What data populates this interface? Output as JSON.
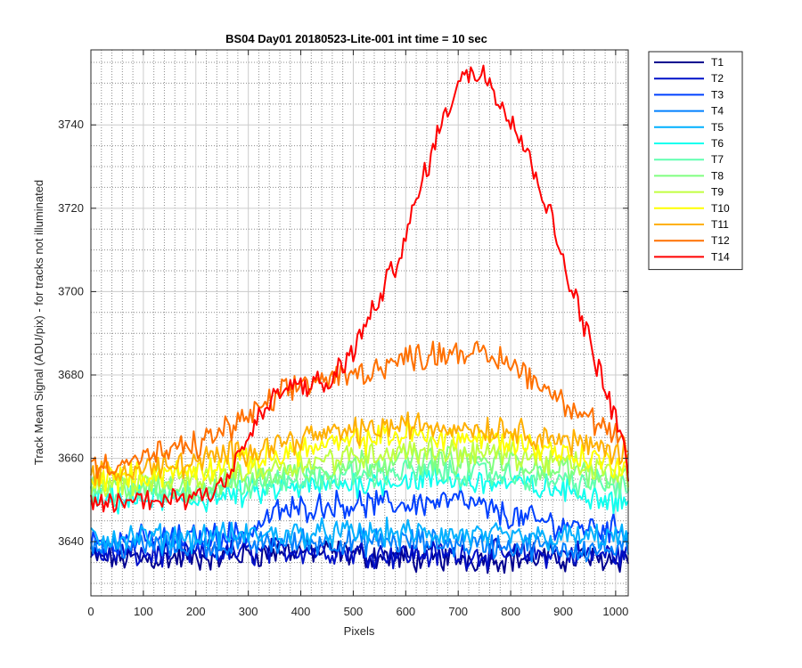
{
  "chart_data": {
    "type": "line",
    "title": "BS04 Day01 20180523-Lite-001 int time = 10 sec",
    "xlabel": "Pixels",
    "ylabel": "Track Mean Signal (ADU/pix) - for tracks not illuminated",
    "xlim": [
      0,
      1024
    ],
    "ylim": [
      3627,
      3758
    ],
    "xticks": [
      0,
      100,
      200,
      300,
      400,
      500,
      600,
      700,
      800,
      900,
      1000
    ],
    "yticks": [
      3640,
      3660,
      3680,
      3700,
      3720,
      3740
    ],
    "grid": "major-solid-minor-dotted",
    "legend_position": "outside-right",
    "noise_amplitude": 2.5,
    "x_step": 4,
    "series": [
      {
        "name": "T1",
        "color": "#00008f",
        "profile": [
          [
            0,
            3636
          ],
          [
            200,
            3636
          ],
          [
            400,
            3638
          ],
          [
            600,
            3636
          ],
          [
            800,
            3636
          ],
          [
            1024,
            3636
          ]
        ]
      },
      {
        "name": "T2",
        "color": "#0010c8",
        "profile": [
          [
            0,
            3637
          ],
          [
            200,
            3637
          ],
          [
            400,
            3638
          ],
          [
            600,
            3637
          ],
          [
            800,
            3637
          ],
          [
            1024,
            3637
          ]
        ]
      },
      {
        "name": "T3",
        "color": "#0040ff",
        "profile": [
          [
            0,
            3640
          ],
          [
            200,
            3641
          ],
          [
            300,
            3642
          ],
          [
            350,
            3647
          ],
          [
            450,
            3649
          ],
          [
            600,
            3649
          ],
          [
            700,
            3650
          ],
          [
            800,
            3646
          ],
          [
            900,
            3644
          ],
          [
            1024,
            3643
          ]
        ]
      },
      {
        "name": "T4",
        "color": "#0080ff",
        "profile": [
          [
            0,
            3639
          ],
          [
            200,
            3639
          ],
          [
            400,
            3640
          ],
          [
            600,
            3640
          ],
          [
            800,
            3639
          ],
          [
            1024,
            3638
          ]
        ]
      },
      {
        "name": "T5",
        "color": "#00b0ff",
        "profile": [
          [
            0,
            3641
          ],
          [
            200,
            3641
          ],
          [
            400,
            3642
          ],
          [
            600,
            3642
          ],
          [
            800,
            3641
          ],
          [
            1024,
            3641
          ]
        ]
      },
      {
        "name": "T6",
        "color": "#10ffef",
        "profile": [
          [
            0,
            3650
          ],
          [
            200,
            3650
          ],
          [
            400,
            3653
          ],
          [
            600,
            3655
          ],
          [
            800,
            3654
          ],
          [
            1024,
            3650
          ]
        ]
      },
      {
        "name": "T7",
        "color": "#60ffb0",
        "profile": [
          [
            0,
            3652
          ],
          [
            200,
            3652
          ],
          [
            400,
            3655
          ],
          [
            600,
            3657
          ],
          [
            800,
            3656
          ],
          [
            1024,
            3653
          ]
        ]
      },
      {
        "name": "T8",
        "color": "#80ff80",
        "profile": [
          [
            0,
            3653
          ],
          [
            200,
            3653
          ],
          [
            400,
            3657
          ],
          [
            600,
            3660
          ],
          [
            800,
            3659
          ],
          [
            1024,
            3655
          ]
        ]
      },
      {
        "name": "T9",
        "color": "#c0ff40",
        "profile": [
          [
            0,
            3654
          ],
          [
            200,
            3655
          ],
          [
            400,
            3659
          ],
          [
            600,
            3662
          ],
          [
            800,
            3661
          ],
          [
            1024,
            3656
          ]
        ]
      },
      {
        "name": "T10",
        "color": "#ffff00",
        "profile": [
          [
            0,
            3655
          ],
          [
            200,
            3657
          ],
          [
            400,
            3662
          ],
          [
            600,
            3666
          ],
          [
            800,
            3664
          ],
          [
            1024,
            3658
          ]
        ]
      },
      {
        "name": "T11",
        "color": "#ffb000",
        "profile": [
          [
            0,
            3656
          ],
          [
            200,
            3659
          ],
          [
            400,
            3665
          ],
          [
            600,
            3668
          ],
          [
            800,
            3667
          ],
          [
            1024,
            3661
          ]
        ]
      },
      {
        "name": "T12",
        "color": "#ff7000",
        "profile": [
          [
            0,
            3658
          ],
          [
            100,
            3660
          ],
          [
            200,
            3663
          ],
          [
            300,
            3670
          ],
          [
            400,
            3678
          ],
          [
            500,
            3680
          ],
          [
            600,
            3684
          ],
          [
            700,
            3686
          ],
          [
            800,
            3683
          ],
          [
            900,
            3674
          ],
          [
            1000,
            3665
          ],
          [
            1024,
            3661
          ]
        ]
      },
      {
        "name": "T14",
        "color": "#ff0000",
        "profile": [
          [
            0,
            3649
          ],
          [
            100,
            3650
          ],
          [
            200,
            3651
          ],
          [
            250,
            3654
          ],
          [
            300,
            3665
          ],
          [
            350,
            3675
          ],
          [
            400,
            3678
          ],
          [
            450,
            3677
          ],
          [
            500,
            3686
          ],
          [
            550,
            3698
          ],
          [
            600,
            3713
          ],
          [
            650,
            3734
          ],
          [
            700,
            3751
          ],
          [
            750,
            3753
          ],
          [
            800,
            3742
          ],
          [
            850,
            3728
          ],
          [
            900,
            3708
          ],
          [
            950,
            3688
          ],
          [
            1000,
            3670
          ],
          [
            1024,
            3658
          ]
        ]
      }
    ]
  }
}
